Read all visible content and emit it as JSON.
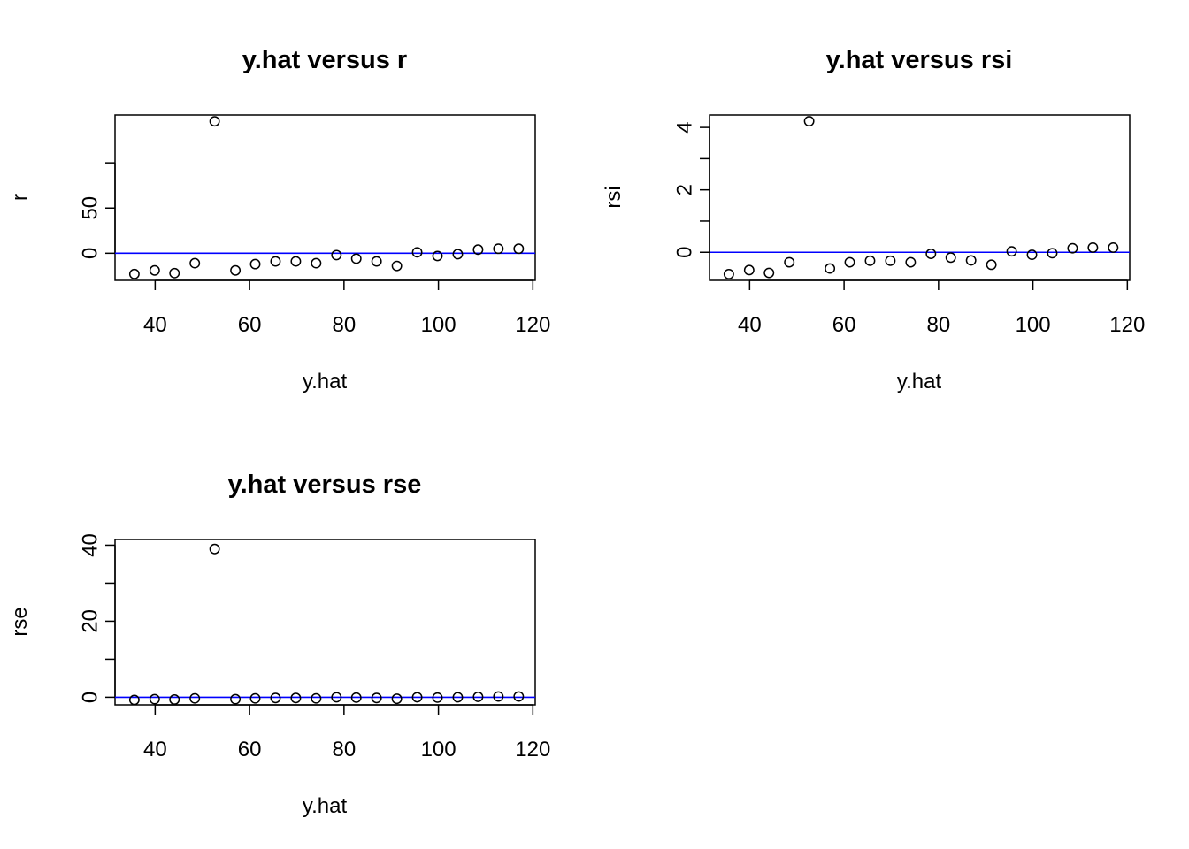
{
  "chart_data": [
    {
      "type": "scatter",
      "title": "y.hat versus r",
      "xlabel": "y.hat",
      "ylabel": "r",
      "xlim": [
        31.5,
        120.5
      ],
      "ylim": [
        -30,
        153
      ],
      "x_ticks": [
        40,
        60,
        80,
        100,
        120
      ],
      "y_ticks": [
        0,
        50,
        100
      ],
      "y_tick_labels": [
        "0",
        "50",
        ""
      ],
      "hline": 0,
      "hline_color": "#0000ff",
      "points": [
        {
          "x": 35.6,
          "y": -23
        },
        {
          "x": 39.9,
          "y": -19
        },
        {
          "x": 44.1,
          "y": -22
        },
        {
          "x": 48.4,
          "y": -11
        },
        {
          "x": 52.6,
          "y": 146
        },
        {
          "x": 57.0,
          "y": -19
        },
        {
          "x": 61.2,
          "y": -12
        },
        {
          "x": 65.5,
          "y": -9
        },
        {
          "x": 69.8,
          "y": -9
        },
        {
          "x": 74.1,
          "y": -11
        },
        {
          "x": 78.4,
          "y": -2
        },
        {
          "x": 82.6,
          "y": -6
        },
        {
          "x": 86.9,
          "y": -9
        },
        {
          "x": 91.2,
          "y": -14
        },
        {
          "x": 95.5,
          "y": 1
        },
        {
          "x": 99.8,
          "y": -3
        },
        {
          "x": 104.1,
          "y": -1
        },
        {
          "x": 108.4,
          "y": 4
        },
        {
          "x": 112.7,
          "y": 5
        },
        {
          "x": 117.0,
          "y": 5
        }
      ]
    },
    {
      "type": "scatter",
      "title": "y.hat versus rsi",
      "xlabel": "y.hat",
      "ylabel": "rsi",
      "xlim": [
        31.5,
        120.5
      ],
      "ylim": [
        -0.9,
        4.4
      ],
      "x_ticks": [
        40,
        60,
        80,
        100,
        120
      ],
      "y_ticks": [
        0,
        1,
        2,
        3,
        4
      ],
      "y_tick_labels": [
        "0",
        "",
        "2",
        "",
        "4"
      ],
      "hline": 0,
      "hline_color": "#0000ff",
      "points": [
        {
          "x": 35.6,
          "y": -0.7
        },
        {
          "x": 39.9,
          "y": -0.57
        },
        {
          "x": 44.1,
          "y": -0.66
        },
        {
          "x": 48.4,
          "y": -0.32
        },
        {
          "x": 52.6,
          "y": 4.2
        },
        {
          "x": 57.0,
          "y": -0.52
        },
        {
          "x": 61.2,
          "y": -0.32
        },
        {
          "x": 65.5,
          "y": -0.27
        },
        {
          "x": 69.8,
          "y": -0.27
        },
        {
          "x": 74.1,
          "y": -0.32
        },
        {
          "x": 78.4,
          "y": -0.05
        },
        {
          "x": 82.6,
          "y": -0.17
        },
        {
          "x": 86.9,
          "y": -0.26
        },
        {
          "x": 91.2,
          "y": -0.4
        },
        {
          "x": 95.5,
          "y": 0.03
        },
        {
          "x": 99.8,
          "y": -0.08
        },
        {
          "x": 104.1,
          "y": -0.03
        },
        {
          "x": 108.4,
          "y": 0.13
        },
        {
          "x": 112.7,
          "y": 0.15
        },
        {
          "x": 117.0,
          "y": 0.15
        }
      ]
    },
    {
      "type": "scatter",
      "title": "y.hat versus rse",
      "xlabel": "y.hat",
      "ylabel": "rse",
      "xlim": [
        31.5,
        120.5
      ],
      "ylim": [
        -2,
        41.5
      ],
      "x_ticks": [
        40,
        60,
        80,
        100,
        120
      ],
      "y_ticks": [
        0,
        10,
        20,
        30,
        40
      ],
      "y_tick_labels": [
        "0",
        "",
        "20",
        "",
        "40"
      ],
      "hline": 0,
      "hline_color": "#0000ff",
      "points": [
        {
          "x": 35.6,
          "y": -0.7
        },
        {
          "x": 39.9,
          "y": -0.5
        },
        {
          "x": 44.1,
          "y": -0.6
        },
        {
          "x": 48.4,
          "y": -0.3
        },
        {
          "x": 52.6,
          "y": 39.0
        },
        {
          "x": 57.0,
          "y": -0.5
        },
        {
          "x": 61.2,
          "y": -0.3
        },
        {
          "x": 65.5,
          "y": -0.2
        },
        {
          "x": 69.8,
          "y": -0.2
        },
        {
          "x": 74.1,
          "y": -0.3
        },
        {
          "x": 78.4,
          "y": 0.0
        },
        {
          "x": 82.6,
          "y": -0.1
        },
        {
          "x": 86.9,
          "y": -0.2
        },
        {
          "x": 91.2,
          "y": -0.4
        },
        {
          "x": 95.5,
          "y": 0.0
        },
        {
          "x": 99.8,
          "y": -0.1
        },
        {
          "x": 104.1,
          "y": 0.0
        },
        {
          "x": 108.4,
          "y": 0.1
        },
        {
          "x": 112.7,
          "y": 0.2
        },
        {
          "x": 117.0,
          "y": 0.2
        }
      ]
    }
  ]
}
